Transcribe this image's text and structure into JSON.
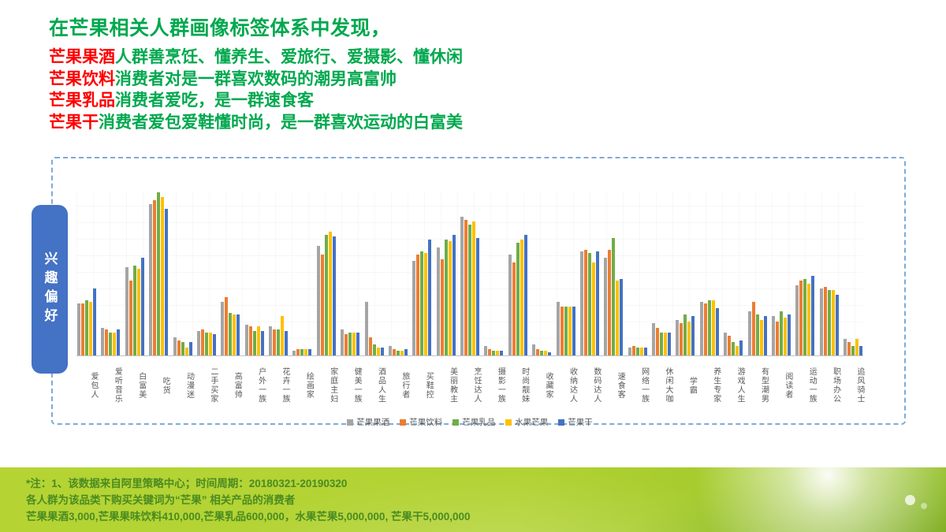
{
  "title": {
    "main": "在芒果相关人群画像标签体系中发现，",
    "lines": [
      {
        "highlight": "芒果果酒",
        "rest": "人群善烹饪、懂养生、爱旅行、爱摄影、懂休闲"
      },
      {
        "highlight": "芒果饮料",
        "rest": "消费者对是一群喜欢数码的潮男高富帅"
      },
      {
        "highlight": "芒果乳品",
        "rest": "消费者爱吃，是一群速食客"
      },
      {
        "highlight": "芒果干",
        "rest": "消费者爱包爱鞋懂时尚，是一群喜欢运动的白富美"
      }
    ],
    "main_color": "#00A84E",
    "highlight_color": "#FF0000"
  },
  "sidebar": {
    "label": "兴趣偏好",
    "color": "#4472C4"
  },
  "chart_data": {
    "type": "bar",
    "title": "",
    "xlabel": "",
    "ylabel": "",
    "ylim": [
      0,
      100
    ],
    "units": "relative bar height, max group (吃货) = 100; no value axis shown in chart",
    "grid": true,
    "legend_position": "bottom",
    "categories": [
      "爱包人",
      "爱听音乐",
      "白富美",
      "吃货",
      "动漫迷",
      "二手买家",
      "高富帅",
      "户外一族",
      "花卉一族",
      "绘画家",
      "家庭主妇",
      "健美一族",
      "酒品人生",
      "旅行者",
      "买鞋控",
      "美丽教主",
      "烹饪达人",
      "摄影一族",
      "时尚靓妹",
      "收藏家",
      "收纳达人",
      "数码达人",
      "速食客",
      "网络一族",
      "休闲大咖",
      "学霸",
      "养生专家",
      "游戏人生",
      "有型潮男",
      "阅读者",
      "运动一族",
      "职场办公",
      "追风骑士"
    ],
    "series": [
      {
        "name": "芒果果酒",
        "color": "#A5A5A5",
        "values": [
          32,
          17,
          54,
          93,
          11,
          15,
          33,
          19,
          18,
          3,
          67,
          16,
          33,
          6,
          58,
          66,
          85,
          6,
          62,
          7,
          33,
          64,
          60,
          5,
          20,
          22,
          33,
          14,
          27,
          24,
          43,
          41,
          10
        ]
      },
      {
        "name": "芒果饮料",
        "color": "#ED7D31",
        "values": [
          32,
          16,
          46,
          95,
          9,
          16,
          36,
          18,
          16,
          4,
          62,
          13,
          11,
          4,
          62,
          59,
          83,
          4,
          57,
          4,
          30,
          65,
          65,
          6,
          17,
          20,
          32,
          12,
          33,
          21,
          46,
          42,
          8
        ]
      },
      {
        "name": "芒果乳品",
        "color": "#70AD47",
        "values": [
          34,
          14,
          55,
          100,
          8,
          14,
          26,
          15,
          16,
          4,
          74,
          14,
          7,
          3,
          64,
          71,
          80,
          3,
          69,
          3,
          30,
          63,
          72,
          5,
          14,
          25,
          34,
          8,
          25,
          27,
          47,
          40,
          6
        ]
      },
      {
        "name": "水果芒果",
        "color": "#FFC000",
        "values": [
          33,
          14,
          53,
          97,
          5,
          14,
          25,
          18,
          24,
          4,
          76,
          14,
          5,
          3,
          63,
          70,
          82,
          3,
          71,
          3,
          30,
          57,
          46,
          5,
          14,
          21,
          34,
          6,
          22,
          23,
          44,
          40,
          10
        ]
      },
      {
        "name": "芒果干",
        "color": "#4472C4",
        "values": [
          41,
          16,
          60,
          90,
          8,
          13,
          25,
          15,
          15,
          4,
          73,
          14,
          5,
          4,
          71,
          74,
          72,
          3,
          74,
          2,
          30,
          64,
          47,
          5,
          14,
          24,
          29,
          9,
          24,
          25,
          49,
          37,
          6
        ]
      }
    ]
  },
  "footer": {
    "lines": [
      "*注：1、该数据来自阿里策略中心；时间周期：20180321-20190320",
      "各人群为该品类下购买关键词为“芒果” 相关产品的消费者",
      "芒果果酒3,000,芒果果味饮料410,000,芒果乳品600,000，水果芒果5,000,000, 芒果干5,000,000"
    ]
  }
}
